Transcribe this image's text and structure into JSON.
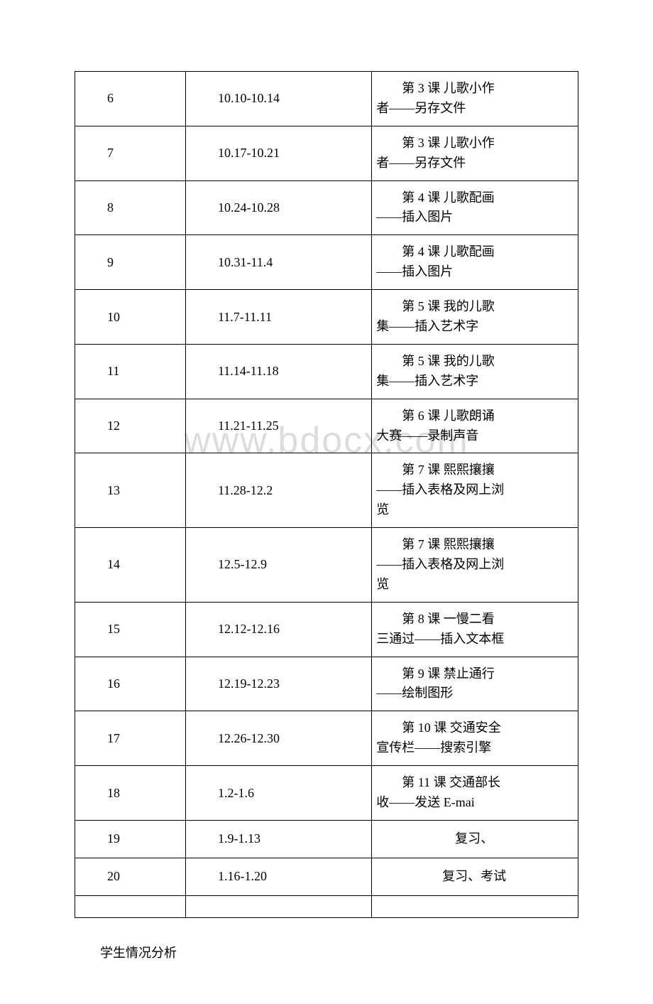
{
  "watermark": "www.bdocx.com",
  "table": {
    "columns": [
      "week",
      "date_range",
      "lesson"
    ],
    "rows": [
      {
        "week": "6",
        "dates": "10.10-10.14",
        "lesson_l1": "第 3 课 儿歌小作",
        "lesson_l2": "者——另存文件"
      },
      {
        "week": "7",
        "dates": "10.17-10.21",
        "lesson_l1": "第 3 课 儿歌小作",
        "lesson_l2": "者——另存文件"
      },
      {
        "week": "8",
        "dates": "10.24-10.28",
        "lesson_l1": "第 4 课 儿歌配画",
        "lesson_l2": "——插入图片"
      },
      {
        "week": "9",
        "dates": "10.31-11.4",
        "lesson_l1": "第 4 课 儿歌配画",
        "lesson_l2": "——插入图片"
      },
      {
        "week": "10",
        "dates": "11.7-11.11",
        "lesson_l1": "第 5 课 我的儿歌",
        "lesson_l2": "集——插入艺术字"
      },
      {
        "week": "11",
        "dates": "11.14-11.18",
        "lesson_l1": "第 5 课 我的儿歌",
        "lesson_l2": "集——插入艺术字"
      },
      {
        "week": "12",
        "dates": "11.21-11.25",
        "lesson_l1": "第 6 课 儿歌朗诵",
        "lesson_l2": "大赛——录制声音"
      },
      {
        "week": "13",
        "dates": "11.28-12.2",
        "lesson_l1": "第 7 课 熙熙攘攘",
        "lesson_l2": "——插入表格及网上浏",
        "lesson_l3": "览"
      },
      {
        "week": "14",
        "dates": "12.5-12.9",
        "lesson_l1": "第 7 课 熙熙攘攘",
        "lesson_l2": "——插入表格及网上浏",
        "lesson_l3": "览"
      },
      {
        "week": "15",
        "dates": "12.12-12.16",
        "lesson_l1": "第 8 课 一慢二看",
        "lesson_l2": "三通过——插入文本框"
      },
      {
        "week": "16",
        "dates": "12.19-12.23",
        "lesson_l1": "第 9 课 禁止通行",
        "lesson_l2": "——绘制图形"
      },
      {
        "week": "17",
        "dates": "12.26-12.30",
        "lesson_l1": "第 10 课 交通安全",
        "lesson_l2": "宣传栏——搜索引擎"
      },
      {
        "week": "18",
        "dates": "1.2-1.6",
        "lesson_l1": "第 11 课 交通部长",
        "lesson_l2": "收——发送 E-mai"
      },
      {
        "week": "19",
        "dates": "1.9-1.13",
        "lesson_center": "复习、"
      },
      {
        "week": "20",
        "dates": "1.16-1.20",
        "lesson_center": "复习、考试"
      }
    ]
  },
  "footer": "学生情况分析",
  "style": {
    "background_color": "#ffffff",
    "border_color": "#000000",
    "text_color": "#000000",
    "watermark_color": "#dcdcdc",
    "font_size_pt": 14,
    "watermark_font_size_pt": 40
  }
}
